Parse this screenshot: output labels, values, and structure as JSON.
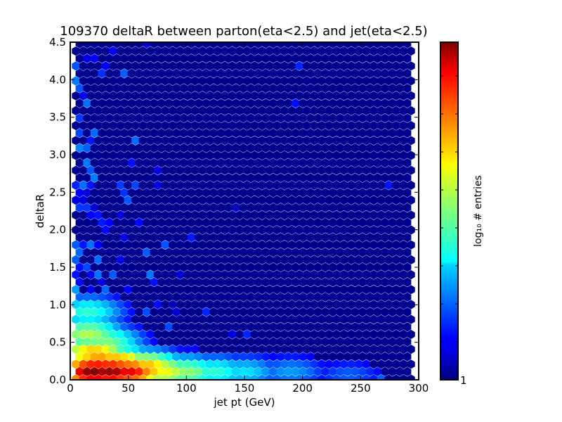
{
  "chart_data": {
    "type": "heatmap",
    "subtype": "hexbin",
    "title": "109370 deltaR between parton(eta<2.5) and jet(eta<2.5)",
    "xlabel": "jet pt (GeV)",
    "ylabel": "deltaR",
    "xlim": [
      0,
      300
    ],
    "ylim": [
      0,
      4.5
    ],
    "xticks": [
      "0",
      "50",
      "100",
      "150",
      "200",
      "250",
      "300"
    ],
    "yticks": [
      "0.0",
      "0.5",
      "1.0",
      "1.5",
      "2.0",
      "2.5",
      "3.0",
      "3.5",
      "4.0",
      "4.5"
    ],
    "colorbar": {
      "label": "log₁₀ # entries",
      "tick_label": "1",
      "colormap": "jet"
    },
    "background_color": "#00008f",
    "bin_scale": "log10 of entries per hex bin, relative 0–1 of colorbar",
    "dense_regions": [
      {
        "x": 20,
        "y": 0.1,
        "level": 1.0
      },
      {
        "x": 35,
        "y": 0.1,
        "level": 0.98
      },
      {
        "x": 50,
        "y": 0.1,
        "level": 0.9
      },
      {
        "x": 25,
        "y": 0.2,
        "level": 0.85
      },
      {
        "x": 40,
        "y": 0.2,
        "level": 0.8
      },
      {
        "x": 20,
        "y": 0.35,
        "level": 0.7
      },
      {
        "x": 65,
        "y": 0.15,
        "level": 0.72
      },
      {
        "x": 80,
        "y": 0.1,
        "level": 0.62
      },
      {
        "x": 100,
        "y": 0.1,
        "level": 0.52
      },
      {
        "x": 15,
        "y": 0.6,
        "level": 0.55
      },
      {
        "x": 30,
        "y": 0.5,
        "level": 0.5
      },
      {
        "x": 125,
        "y": 0.1,
        "level": 0.42
      },
      {
        "x": 150,
        "y": 0.1,
        "level": 0.35
      },
      {
        "x": 15,
        "y": 0.9,
        "level": 0.42
      },
      {
        "x": 190,
        "y": 0.1,
        "level": 0.28
      },
      {
        "x": 240,
        "y": 0.05,
        "level": 0.22
      }
    ]
  }
}
